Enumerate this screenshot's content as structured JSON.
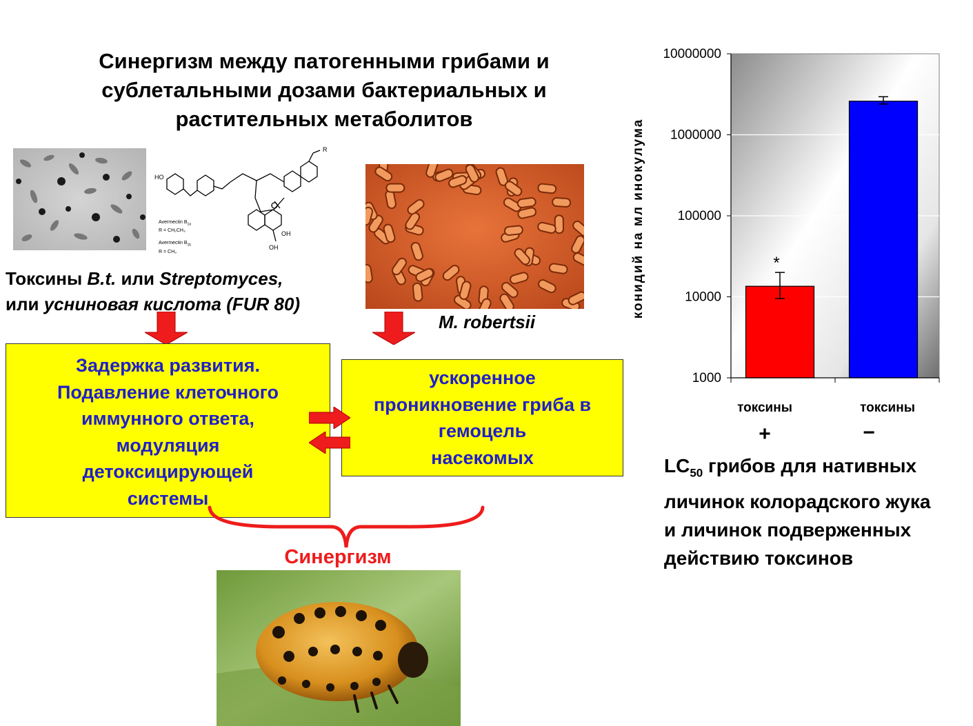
{
  "title": "Синергизм между  патогенными грибами и сублетальными дозами бактериальных и растительных метаболитов",
  "images": {
    "bacteria": "bacteria-micrograph",
    "molecule": "avermectin-structure",
    "fungus": "fungal-conidia-micrograph",
    "larva": "colorado-beetle-larva-photo"
  },
  "molecule_labels": {
    "r": "R",
    "ho": "HO",
    "oh": "OH",
    "aver1": "Avermectin B",
    "aver1_sub": "1a",
    "r1": "R = CH₂CH₃",
    "aver2": "Avermectin B",
    "aver2_sub": "1b",
    "r2": "R = CH₃"
  },
  "toxins_caption": {
    "p1": "Токсины ",
    "p2": "B.t.",
    "p3": " или ",
    "p4": "Streptomyces,",
    "p5": "или ",
    "p6": "усниновая кислота (FUR 80)"
  },
  "fungus_caption": "M. robertsii",
  "box_left": {
    "l1": "Задержка развития.",
    "l2": "Подавление клеточного",
    "l3": "иммунного ответа,",
    "l4": "модуляция",
    "l5": "детоксицирующей",
    "l6": "системы"
  },
  "box_right": {
    "l1": "ускоренное",
    "l2": "проникновение гриба в",
    "l3": "гемоцель",
    "l4": "насекомых"
  },
  "synergy_label": "Синергизм",
  "colors": {
    "arrow": "#ee1c1c",
    "box_fill": "#ffff00",
    "box_text": "#1f1fc8",
    "bar_plus": "#ff0000",
    "bar_minus": "#0000ff"
  },
  "chart_data": {
    "type": "bar",
    "scale": "log",
    "ylabel": "конидий на мл инокулума",
    "ylim": [
      1000,
      10000000
    ],
    "yticks": [
      "10000000",
      "1000000",
      "100000",
      "10000",
      "1000"
    ],
    "categories": [
      "токсины",
      "токсины"
    ],
    "signs": [
      "+",
      "−"
    ],
    "values": [
      13500,
      2600000
    ],
    "err_low": [
      9500,
      2400000
    ],
    "err_high": [
      20000,
      2950000
    ],
    "annotation": "*",
    "grid": true
  },
  "chart_caption": {
    "c1": "LC",
    "c1_sub": "50",
    "c1_rest": " грибов для нативных",
    "c2": "личинок колорадского жука",
    "c3": "и личинок подверженных",
    "c4": "действию токсинов"
  }
}
